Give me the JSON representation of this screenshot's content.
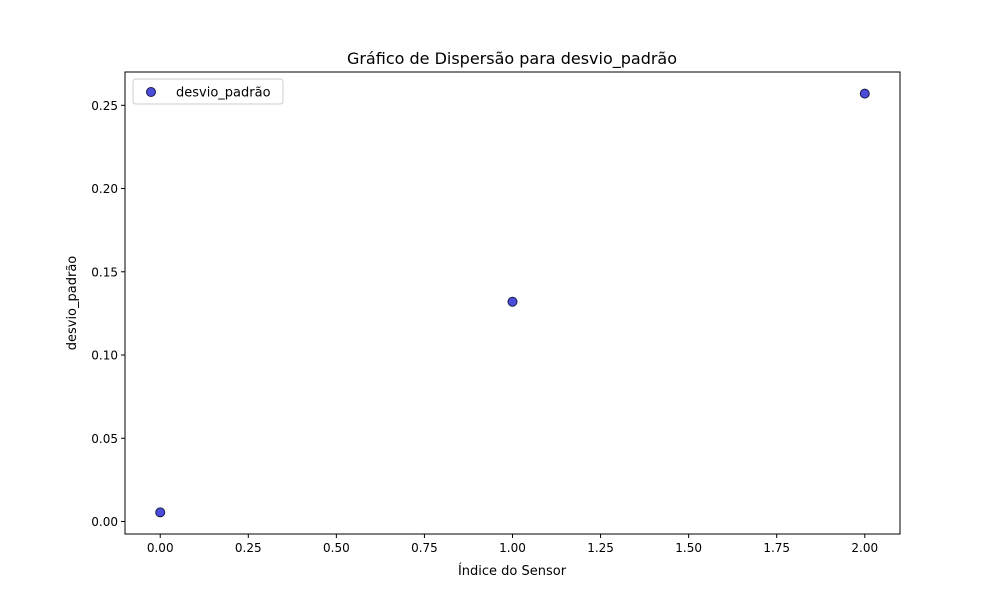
{
  "chart_data": {
    "type": "scatter",
    "title": "Gráfico de Dispersão para desvio_padrão",
    "xlabel": "Índice do Sensor",
    "ylabel": "desvio_padrão",
    "xlim": [
      -0.1,
      2.1
    ],
    "ylim": [
      -0.0075,
      0.27
    ],
    "x_ticks": [
      0.0,
      0.25,
      0.5,
      0.75,
      1.0,
      1.25,
      1.5,
      1.75,
      2.0
    ],
    "x_tick_labels": [
      "0.00",
      "0.25",
      "0.50",
      "0.75",
      "1.00",
      "1.25",
      "1.50",
      "1.75",
      "2.00"
    ],
    "y_ticks": [
      0.0,
      0.05,
      0.1,
      0.15,
      0.2,
      0.25
    ],
    "y_tick_labels": [
      "0.00",
      "0.05",
      "0.10",
      "0.15",
      "0.20",
      "0.25"
    ],
    "grid": false,
    "legend_position": "top-left",
    "series": [
      {
        "name": "desvio_padrão",
        "color": "#0000cc",
        "x": [
          0,
          1,
          2
        ],
        "y": [
          0.0055,
          0.132,
          0.257
        ]
      }
    ]
  }
}
